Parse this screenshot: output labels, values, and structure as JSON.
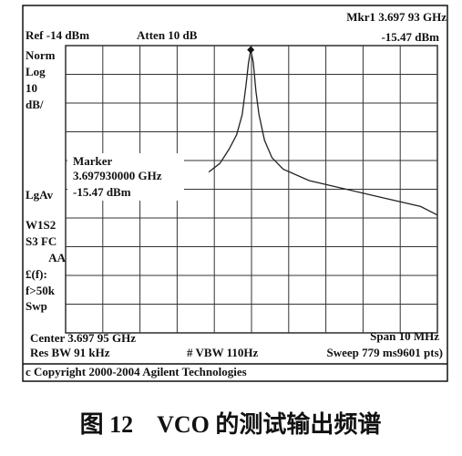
{
  "chart_data": {
    "type": "line",
    "texts": [
      "Ref -14 dBm",
      "Atten 10 dB",
      "Mkr1 3.697 93 GHz",
      "-15.47 dBm",
      "Norm",
      "Log",
      "10",
      "dB/",
      "LgAv",
      "W1S2",
      "S3 FC",
      "AA",
      "£(f):",
      "f>50k",
      "Swp",
      "Marker",
      "3.697930000 GHz",
      "-15.47 dBm",
      "Center 3.697 95 GHz",
      "Span 10 MHz",
      "Res BW 91 kHz",
      "# VBW 110Hz",
      "Sweep 779 ms9601 pts)",
      "c Copyright 2000-2004 Agilent Technologies"
    ],
    "caption": "图 12　VCO 的测试输出频谱",
    "x": [
      3.6968,
      3.6971,
      3.69735,
      3.69755,
      3.6977,
      3.6978,
      3.69787,
      3.69793,
      3.698,
      3.69807,
      3.69815,
      3.6983,
      3.6985,
      3.6988,
      3.6995,
      3.7005,
      3.7015,
      3.7025,
      3.70295
    ],
    "series": [
      {
        "color": "#222",
        "values": [
          -58,
          -55,
          -50,
          -45,
          -38,
          -28,
          -20,
          -15.47,
          -20,
          -30,
          -38,
          -47,
          -53,
          -57,
          -61,
          -64,
          -67,
          -70,
          -73
        ]
      }
    ],
    "xlim": [
      3.69295,
      3.70295
    ],
    "ylim": [
      -114,
      -14
    ],
    "xticks": [
      3.69295,
      3.69395,
      3.69495,
      3.69595,
      3.69695,
      3.69795,
      3.69895,
      3.69995,
      3.70095,
      3.70195,
      3.70295
    ],
    "yticks": [
      -114,
      -104,
      -94,
      -84,
      -74,
      -64,
      -54,
      -44,
      -34,
      -24,
      -14
    ],
    "grid": true
  }
}
